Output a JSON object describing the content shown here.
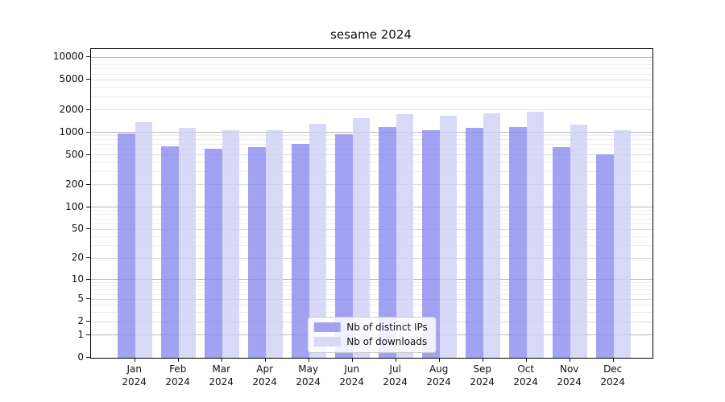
{
  "title": "sesame 2024",
  "chart_data": {
    "type": "bar",
    "title": "sesame 2024",
    "scale": "log1p-symlog",
    "xlabel": "",
    "ylabel": "",
    "ylim": [
      0,
      12900
    ],
    "grid": true,
    "legend_position": "lower center",
    "y_ticks": [
      10000,
      5000,
      2000,
      1000,
      500,
      200,
      100,
      50,
      20,
      10,
      5,
      2,
      1,
      0
    ],
    "y_minor_tick_bases": [
      3,
      4,
      6,
      7,
      8,
      9
    ],
    "categories": [
      "Jan 2024",
      "Feb 2024",
      "Mar 2024",
      "Apr 2024",
      "May 2024",
      "Jun 2024",
      "Jul 2024",
      "Aug 2024",
      "Sep 2024",
      "Oct 2024",
      "Nov 2024",
      "Dec 2024"
    ],
    "series": [
      {
        "name": "Nb of distinct IPs",
        "fill": "rgba(139,139,239,0.80)",
        "swatch_color": "#a2a2f2",
        "values": [
          960,
          660,
          610,
          630,
          710,
          950,
          1170,
          1080,
          1140,
          1170,
          630,
          510
        ]
      },
      {
        "name": "Nb of downloads",
        "fill": "rgba(206,206,245,0.80)",
        "swatch_color": "#d8d8f7",
        "values": [
          1360,
          1150,
          1060,
          1080,
          1290,
          1540,
          1740,
          1650,
          1810,
          1870,
          1270,
          1070
        ]
      }
    ]
  },
  "legend": {
    "items": [
      {
        "label": "Nb of distinct IPs",
        "swatch_color": "#a2a2f2"
      },
      {
        "label": "Nb of downloads",
        "swatch_color": "#d8d8f7"
      }
    ]
  }
}
